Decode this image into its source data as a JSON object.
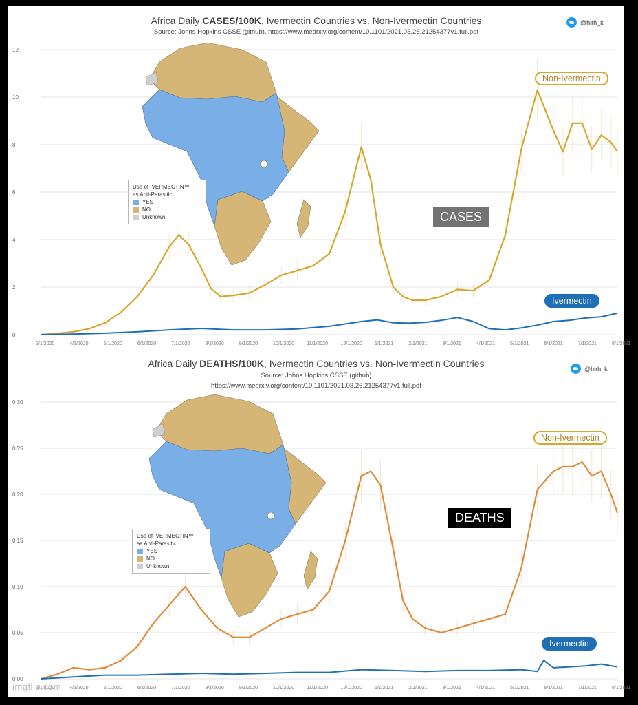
{
  "colors": {
    "non_ivermectin": "#d6a72e",
    "non_ivermectin_deaths": "#e08a3a",
    "ivermectin": "#1e6fb5",
    "map_yes": "#7aaee6",
    "map_no": "#d6b677",
    "map_unknown": "#cfcfcf"
  },
  "twitter_handle_top": "@hirh_k",
  "twitter_handle_bottom": "@hirh_k",
  "watermark": "imgflip.com",
  "legend": {
    "title_line1": "Use of IVERMECTIN™",
    "title_line2": "as Anti-Parasitic",
    "items": [
      "YES",
      "NO",
      "Unknown"
    ]
  },
  "cases": {
    "title_pre": "Africa Daily ",
    "title_bold": "CASES/100K",
    "title_post": ", Ivermectin Countries vs. Non-Ivermectin Countries",
    "subtitle": "Source: Johns Hopkins CSSE (github), https://www.medrxiv.org/content/10.1101/2021.03.26.21254377v1.full.pdf",
    "box_label": "CASES",
    "tag_non": "Non-Ivermectin",
    "tag_iv": "Ivermectin"
  },
  "deaths": {
    "title_pre": "Africa Daily ",
    "title_bold": "DEATHS/100K",
    "title_post": ", Ivermectin Countries vs. Non-Ivermectin Countries",
    "subtitle_line1": "Source: Johns Hopkins CSSE (github)",
    "subtitle_line2": "https://www.medrxiv.org/content/10.1101/2021.03.26.21254377v1.full.pdf",
    "box_label": "DEATHS",
    "tag_non": "Non-Ivermectin",
    "tag_iv": "Ivermectin"
  },
  "chart_data": [
    {
      "type": "line",
      "title": "Africa Daily CASES/100K, Ivermectin Countries vs. Non-Ivermectin Countries",
      "ylim": [
        0,
        12
      ],
      "yticks": [
        0,
        2,
        4,
        6,
        8,
        10,
        12
      ],
      "xlim": [
        0,
        18
      ],
      "x_tick_labels": [
        "2/1/2020",
        "4/1/2020",
        "5/1/2020",
        "6/1/2020",
        "7/1/2020",
        "8/1/2020",
        "9/1/2020",
        "10/1/2020",
        "11/1/2020",
        "12/1/2020",
        "1/1/2021",
        "2/1/2021",
        "3/1/2021",
        "4/1/2021",
        "5/1/2021",
        "6/1/2021",
        "7/1/2021",
        "8/1/2021"
      ],
      "grid": true,
      "series": [
        {
          "name": "Non-Ivermectin",
          "x": [
            0,
            0.5,
            1,
            1.5,
            2,
            2.5,
            3,
            3.5,
            4,
            4.3,
            4.6,
            5,
            5.3,
            5.6,
            6,
            6.5,
            7,
            7.5,
            8,
            8.5,
            9,
            9.5,
            10,
            10.3,
            10.6,
            11,
            11.3,
            11.6,
            12,
            12.5,
            13,
            13.5,
            14,
            14.5,
            15,
            15.5,
            16,
            16.3,
            16.6,
            16.9,
            17.2,
            17.5,
            17.8,
            18
          ],
          "y": [
            0,
            0.05,
            0.12,
            0.25,
            0.5,
            0.95,
            1.6,
            2.5,
            3.7,
            4.2,
            3.8,
            2.8,
            1.95,
            1.6,
            1.65,
            1.75,
            2.1,
            2.5,
            2.7,
            2.9,
            3.4,
            5.2,
            7.9,
            6.5,
            3.8,
            2.0,
            1.6,
            1.45,
            1.45,
            1.6,
            1.9,
            1.85,
            2.3,
            4.2,
            7.8,
            10.3,
            8.6,
            7.7,
            8.9,
            8.9,
            7.8,
            8.4,
            8.1,
            7.7
          ]
        },
        {
          "name": "Ivermectin",
          "x": [
            0,
            1,
            2,
            3,
            4,
            5,
            6,
            7,
            8,
            9,
            10,
            10.5,
            11,
            11.5,
            12,
            12.5,
            13,
            13.5,
            14,
            14.5,
            15,
            15.5,
            16,
            16.5,
            17,
            17.5,
            18
          ],
          "y": [
            0,
            0.02,
            0.06,
            0.12,
            0.2,
            0.26,
            0.2,
            0.2,
            0.24,
            0.35,
            0.55,
            0.62,
            0.5,
            0.48,
            0.52,
            0.6,
            0.72,
            0.55,
            0.25,
            0.2,
            0.28,
            0.4,
            0.55,
            0.6,
            0.7,
            0.75,
            0.9
          ]
        }
      ]
    },
    {
      "type": "line",
      "title": "Africa Daily DEATHS/100K, Ivermectin Countries vs. Non-Ivermectin Countries",
      "ylim": [
        0,
        0.3
      ],
      "yticks": [
        0.0,
        0.05,
        0.1,
        0.15,
        0.2,
        0.25,
        0.3
      ],
      "xlim": [
        0,
        18
      ],
      "x_tick_labels": [
        "2/1/2020",
        "4/1/2020",
        "5/1/2020",
        "6/1/2020",
        "7/1/2020",
        "8/1/2020",
        "9/1/2020",
        "10/1/2020",
        "11/1/2020",
        "12/1/2020",
        "1/1/2021",
        "2/1/2021",
        "3/1/2021",
        "4/1/2021",
        "5/1/2021",
        "6/1/2021",
        "7/1/2021",
        "8/1/2021"
      ],
      "grid": true,
      "series": [
        {
          "name": "Non-Ivermectin",
          "x": [
            0,
            0.5,
            1,
            1.5,
            2,
            2.5,
            3,
            3.5,
            4,
            4.5,
            5,
            5.5,
            6,
            6.5,
            7,
            7.5,
            8,
            8.5,
            9,
            9.5,
            10,
            10.3,
            10.6,
            11,
            11.3,
            11.6,
            12,
            12.5,
            13,
            13.5,
            14,
            14.5,
            15,
            15.5,
            16,
            16.3,
            16.6,
            16.9,
            17.2,
            17.5,
            17.8,
            18
          ],
          "y": [
            0,
            0.005,
            0.012,
            0.01,
            0.012,
            0.02,
            0.035,
            0.06,
            0.08,
            0.1,
            0.075,
            0.055,
            0.045,
            0.045,
            0.055,
            0.065,
            0.07,
            0.075,
            0.095,
            0.15,
            0.22,
            0.225,
            0.21,
            0.14,
            0.085,
            0.065,
            0.055,
            0.05,
            0.055,
            0.06,
            0.065,
            0.07,
            0.12,
            0.205,
            0.225,
            0.23,
            0.23,
            0.235,
            0.22,
            0.225,
            0.2,
            0.18
          ]
        },
        {
          "name": "Ivermectin",
          "x": [
            0,
            1,
            2,
            3,
            4,
            5,
            6,
            7,
            8,
            9,
            10,
            11,
            12,
            13,
            14,
            15,
            15.5,
            15.7,
            16,
            16.5,
            17,
            17.5,
            18
          ],
          "y": [
            0,
            0.002,
            0.004,
            0.004,
            0.005,
            0.006,
            0.005,
            0.006,
            0.007,
            0.007,
            0.01,
            0.009,
            0.008,
            0.009,
            0.009,
            0.01,
            0.008,
            0.02,
            0.012,
            0.013,
            0.014,
            0.016,
            0.013
          ]
        }
      ]
    }
  ]
}
